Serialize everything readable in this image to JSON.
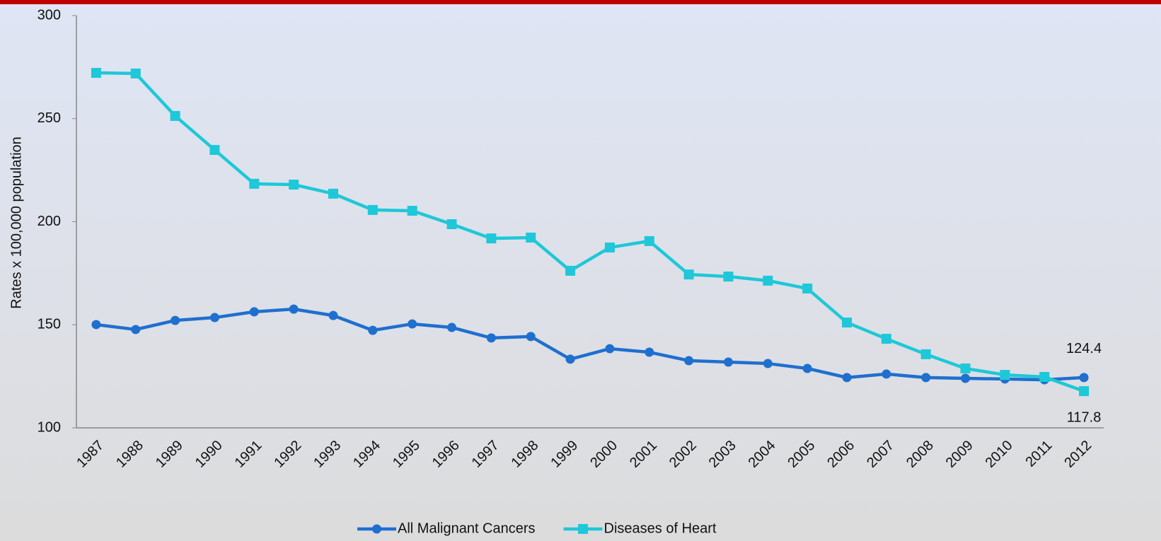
{
  "chart_data": {
    "type": "line",
    "y_label": "Rates x 100,000 population",
    "categories": [
      "1987",
      "1988",
      "1989",
      "1990",
      "1991",
      "1992",
      "1993",
      "1994",
      "1995",
      "1996",
      "1997",
      "1998",
      "1999",
      "2000",
      "2001",
      "2002",
      "2003",
      "2004",
      "2005",
      "2006",
      "2007",
      "2008",
      "2009",
      "2010",
      "2011",
      "2012"
    ],
    "series": [
      {
        "name": "All Malignant Cancers",
        "color": "#1f6fcf",
        "marker": "circle",
        "values": [
          150.1,
          147.7,
          152.1,
          153.5,
          156.3,
          157.6,
          154.5,
          147.3,
          150.4,
          148.7,
          143.6,
          144.3,
          133.3,
          138.4,
          136.7,
          132.6,
          131.9,
          131.2,
          128.8,
          124.4,
          126.1,
          124.4,
          124.0,
          123.7,
          123.3,
          124.4
        ]
      },
      {
        "name": "Diseases of Heart",
        "color": "#1ec8d8",
        "marker": "square",
        "values": [
          272.2,
          271.9,
          251.3,
          234.8,
          218.4,
          218.0,
          213.6,
          205.7,
          205.3,
          198.8,
          191.9,
          192.3,
          176.2,
          187.5,
          190.6,
          174.4,
          173.4,
          171.4,
          167.6,
          151.1,
          143.2,
          135.7,
          128.8,
          125.7,
          124.7,
          117.8
        ]
      }
    ],
    "data_labels": "last",
    "ylim": [
      100,
      300
    ],
    "yticks": [
      100,
      150,
      200,
      250,
      300
    ],
    "grid": false,
    "legend": "bottom"
  }
}
